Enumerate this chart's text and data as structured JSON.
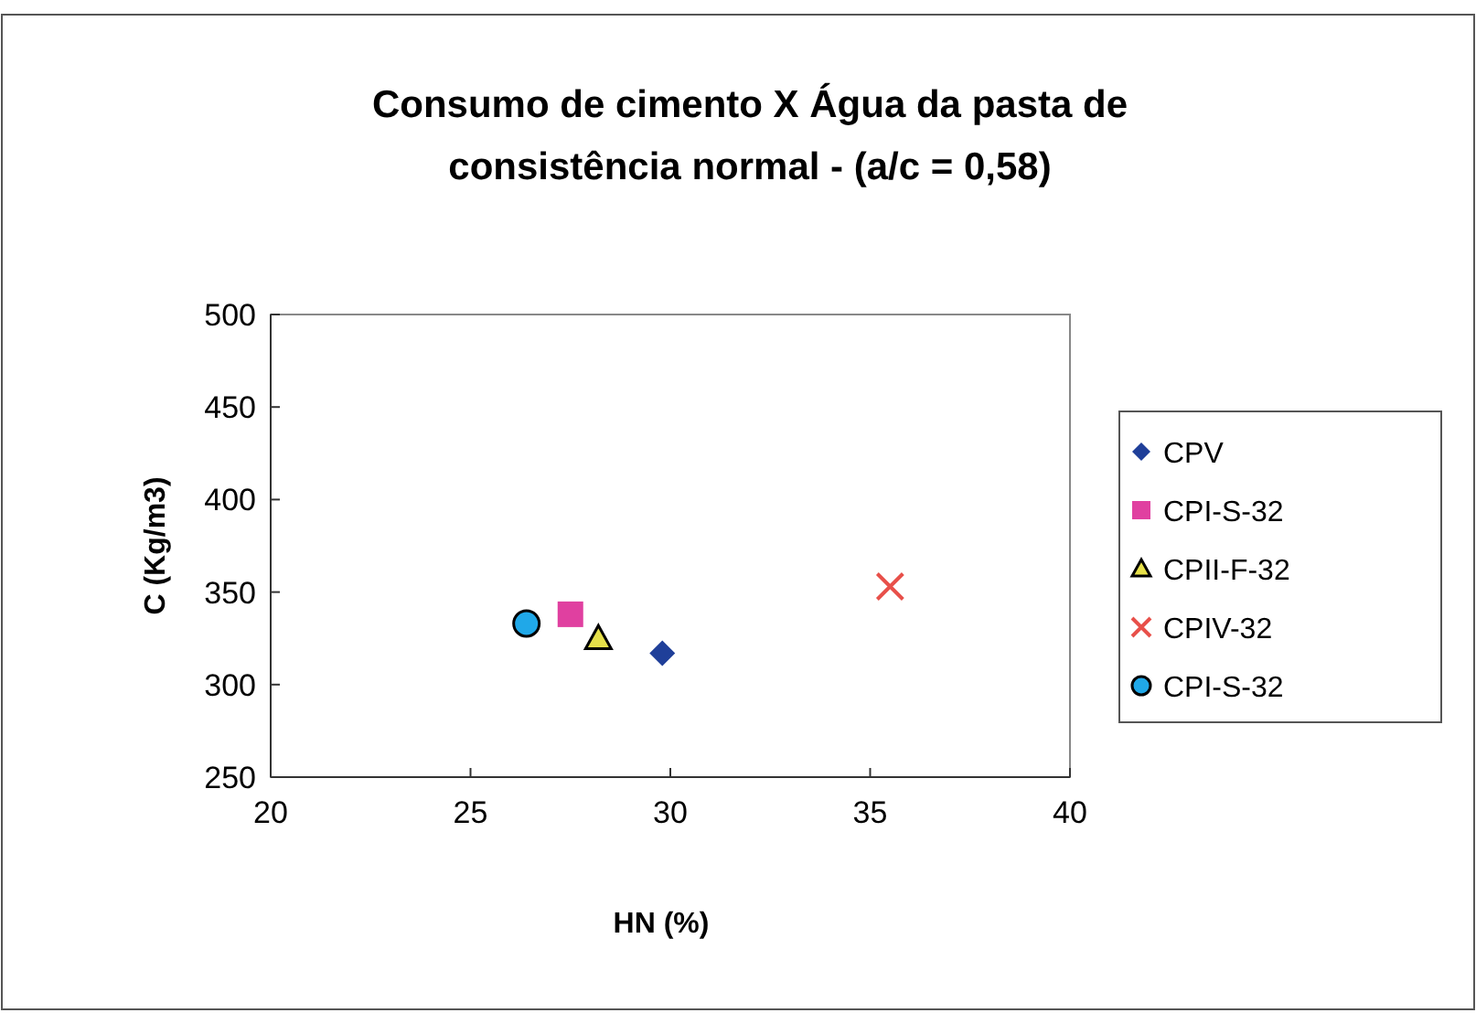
{
  "chart_data": {
    "type": "scatter",
    "title": "Consumo de cimento X Água da pasta de consistência normal - (a/c = 0,58)",
    "xlabel": "HN (%)",
    "ylabel": "C (Kg/m3)",
    "xlim": [
      20,
      40
    ],
    "xticks": [
      20,
      25,
      30,
      35,
      40
    ],
    "ylim": [
      250,
      500
    ],
    "yticks": [
      250,
      300,
      350,
      400,
      450,
      500
    ],
    "grid": false,
    "legend": "right",
    "series": [
      {
        "name": "CPV",
        "color": "#1f3f99",
        "marker": "diamond",
        "x": [
          29.8
        ],
        "values": [
          317
        ]
      },
      {
        "name": "CPI-S-32",
        "color": "#e040a0",
        "marker": "square",
        "x": [
          27.5
        ],
        "values": [
          338
        ]
      },
      {
        "name": "CPII-F-32",
        "color": "#e6e04a",
        "marker": "triangle",
        "x": [
          28.2
        ],
        "values": [
          325
        ]
      },
      {
        "name": "CPIV-32",
        "color": "#e8504a",
        "marker": "cross",
        "x": [
          35.5
        ],
        "values": [
          353
        ]
      },
      {
        "name": "CPI-S-32",
        "color": "#20a8e8",
        "marker": "circle",
        "x": [
          26.4
        ],
        "values": [
          333
        ]
      }
    ]
  }
}
